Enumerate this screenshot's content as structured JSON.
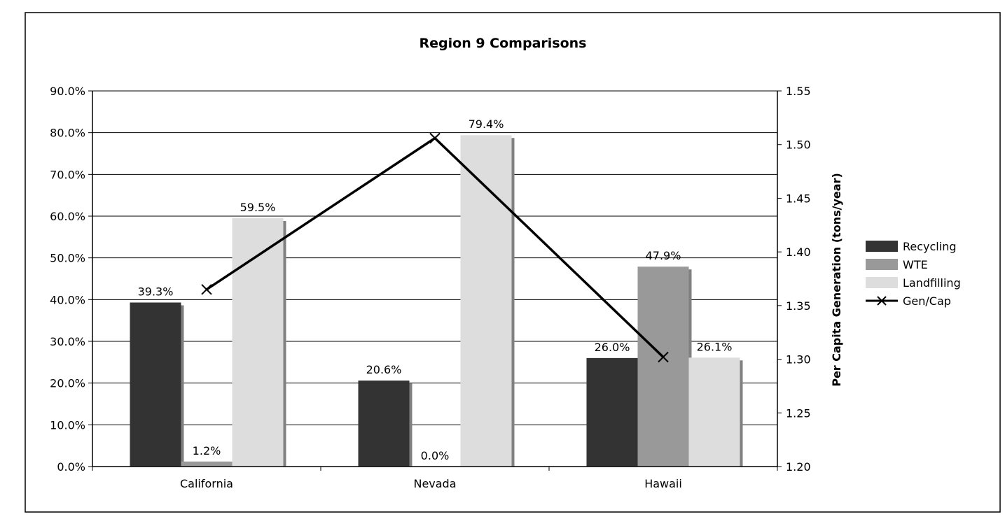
{
  "chart_data": {
    "type": "bar",
    "title": "Region 9 Comparisons",
    "categories": [
      "California",
      "Nevada",
      "Hawaii"
    ],
    "series": [
      {
        "name": "Recycling",
        "kind": "bar",
        "axis": "left",
        "color": "#333333",
        "values": [
          39.3,
          20.6,
          26.0
        ],
        "labels": [
          "39.3%",
          "20.6%",
          "26.0%"
        ]
      },
      {
        "name": "WTE",
        "kind": "bar",
        "axis": "left",
        "color": "#999999",
        "values": [
          1.2,
          0.0,
          47.9
        ],
        "labels": [
          "1.2%",
          "0.0%",
          "47.9%"
        ]
      },
      {
        "name": "Landfilling",
        "kind": "bar",
        "axis": "left",
        "color": "#dddddd",
        "values": [
          59.5,
          79.4,
          26.1
        ],
        "labels": [
          "59.5%",
          "79.4%",
          "26.1%"
        ]
      },
      {
        "name": "Gen/Cap",
        "kind": "line",
        "axis": "right",
        "color": "#000000",
        "values": [
          1.365,
          1.506,
          1.302
        ]
      }
    ],
    "y_left": {
      "label": "",
      "range": [
        0,
        90
      ],
      "ticks": [
        0,
        10,
        20,
        30,
        40,
        50,
        60,
        70,
        80,
        90
      ],
      "tick_labels": [
        "0.0%",
        "10.0%",
        "20.0%",
        "30.0%",
        "40.0%",
        "50.0%",
        "60.0%",
        "70.0%",
        "80.0%",
        "90.0%"
      ]
    },
    "y_right": {
      "label": "Per Capita Generation (tons/year)",
      "range": [
        1.2,
        1.55
      ],
      "ticks": [
        1.2,
        1.25,
        1.3,
        1.35,
        1.4,
        1.45,
        1.5,
        1.55
      ],
      "tick_labels": [
        "1.20",
        "1.25",
        "1.30",
        "1.35",
        "1.40",
        "1.45",
        "1.50",
        "1.55"
      ]
    },
    "grid": true,
    "legend_position": "right"
  }
}
